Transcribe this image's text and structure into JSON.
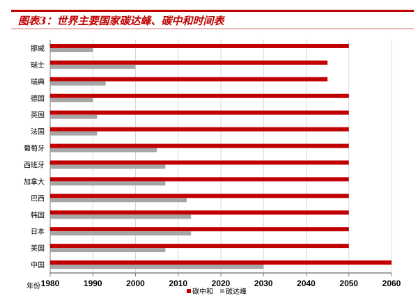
{
  "title": "图表3：世界主要国家碳达峰、碳中和时间表",
  "chart_data": {
    "type": "bar",
    "orientation": "horizontal",
    "title": "图表3：世界主要国家碳达峰、碳中和时间表",
    "xlabel": "年份",
    "ylabel": "",
    "xlim": [
      1980,
      2060
    ],
    "xticks": [
      1980,
      1990,
      2000,
      2010,
      2020,
      2030,
      2040,
      2050,
      2060
    ],
    "grid": true,
    "legend_position": "bottom",
    "categories": [
      "挪威",
      "瑞士",
      "瑞典",
      "德国",
      "英国",
      "法国",
      "葡萄牙",
      "西班牙",
      "加拿大",
      "巴西",
      "韩国",
      "日本",
      "美国",
      "中国"
    ],
    "series": [
      {
        "name": "碳中和",
        "color": "#c00000",
        "values": [
          2050,
          2045,
          2045,
          2050,
          2050,
          2050,
          2050,
          2050,
          2050,
          2050,
          2050,
          2050,
          2050,
          2060
        ]
      },
      {
        "name": "碳达峰",
        "color": "#a6a6a6",
        "values": [
          1990,
          2000,
          1993,
          1990,
          1991,
          1991,
          2005,
          2007,
          2007,
          2012,
          2013,
          2013,
          2007,
          2030
        ]
      }
    ]
  }
}
